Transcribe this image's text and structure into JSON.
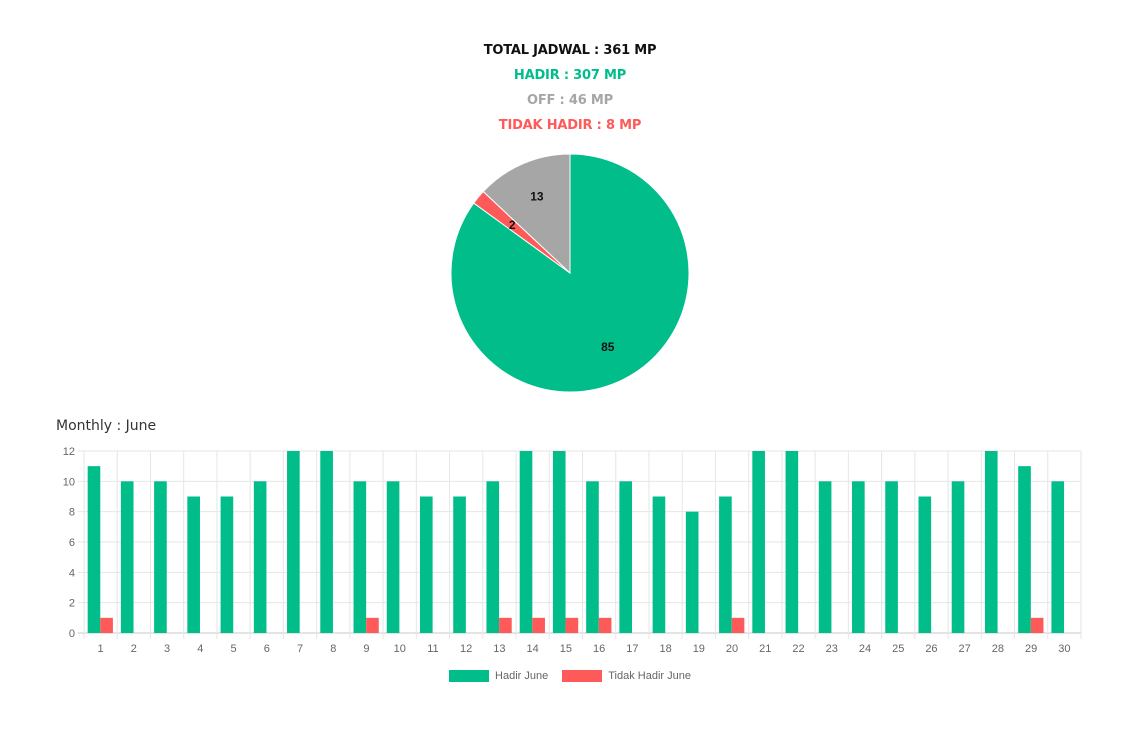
{
  "summary": {
    "total": "TOTAL JADWAL : 361 MP",
    "hadir": "HADIR : 307 MP",
    "off": "OFF : 46 MP",
    "tidak_hadir": "TIDAK HADIR : 8 MP"
  },
  "colors": {
    "hadir": "#00bd8a",
    "off": "#a6a6a6",
    "tidak_hadir": "#ff5a5a"
  },
  "monthly_title": "Monthly : June",
  "chart_data": [
    {
      "type": "pie",
      "slices": [
        {
          "label": "85",
          "value": 85,
          "color": "#00bd8a"
        },
        {
          "label": "2",
          "value": 2,
          "color": "#ff5a5a"
        },
        {
          "label": "13",
          "value": 13,
          "color": "#a6a6a6"
        }
      ]
    },
    {
      "type": "bar",
      "categories": [
        "1",
        "2",
        "3",
        "4",
        "5",
        "6",
        "7",
        "8",
        "9",
        "10",
        "11",
        "12",
        "13",
        "14",
        "15",
        "16",
        "17",
        "18",
        "19",
        "20",
        "21",
        "22",
        "23",
        "24",
        "25",
        "26",
        "27",
        "28",
        "29",
        "30"
      ],
      "series": [
        {
          "name": "Hadir June",
          "color": "#00bd8a",
          "values": [
            11,
            10,
            10,
            9,
            9,
            10,
            12,
            12,
            10,
            10,
            9,
            9,
            10,
            12,
            12,
            10,
            10,
            9,
            8,
            9,
            12,
            12,
            10,
            10,
            10,
            9,
            10,
            12,
            11,
            10
          ]
        },
        {
          "name": "Tidak Hadir June",
          "color": "#ff5a5a",
          "values": [
            1,
            0,
            0,
            0,
            0,
            0,
            0,
            0,
            1,
            0,
            0,
            0,
            1,
            1,
            1,
            1,
            0,
            0,
            0,
            1,
            0,
            0,
            0,
            0,
            0,
            0,
            0,
            0,
            1,
            0
          ]
        }
      ],
      "ylim": [
        0,
        12
      ],
      "yticks": [
        "0",
        "2",
        "4",
        "6",
        "8",
        "10",
        "12"
      ],
      "grid": true,
      "legend": "bottom"
    }
  ]
}
